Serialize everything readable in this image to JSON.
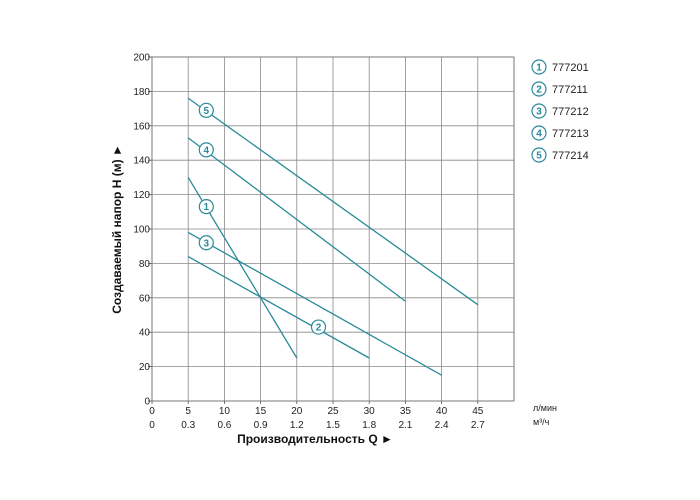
{
  "chart_data": {
    "type": "line",
    "title": "",
    "ylabel": "Создаваемый напор H (м) ►",
    "xlabel": "Производительность Q ►",
    "ylim": [
      0,
      200
    ],
    "yticks": [
      "0",
      "20",
      "40",
      "60",
      "80",
      "100",
      "120",
      "140",
      "160",
      "180",
      "200"
    ],
    "xlim": [
      0,
      50
    ],
    "x_ticks_lmin": [
      "0",
      "5",
      "10",
      "15",
      "20",
      "25",
      "30",
      "35",
      "40",
      "45"
    ],
    "x_ticks_m3h": [
      "0",
      "0.3",
      "0.6",
      "0.9",
      "1.2",
      "1.5",
      "1.8",
      "2.1",
      "2.4",
      "2.7"
    ],
    "x_unit_primary": "л/мин",
    "x_unit_secondary": "м³/ч",
    "grid": true,
    "legend_position": "right",
    "line_color": "#2a8a9a",
    "series": [
      {
        "marker": "1",
        "name": "777201",
        "points": [
          [
            5,
            130
          ],
          [
            20,
            25
          ]
        ],
        "label_at": [
          7.5,
          113
        ]
      },
      {
        "marker": "2",
        "name": "777211",
        "points": [
          [
            5,
            84
          ],
          [
            30,
            25
          ]
        ],
        "label_at": [
          23,
          43
        ]
      },
      {
        "marker": "3",
        "name": "777212",
        "points": [
          [
            5,
            98
          ],
          [
            40,
            15
          ]
        ],
        "label_at": [
          7.5,
          92
        ]
      },
      {
        "marker": "4",
        "name": "777213",
        "points": [
          [
            5,
            153
          ],
          [
            35,
            58
          ]
        ],
        "label_at": [
          7.5,
          146
        ]
      },
      {
        "marker": "5",
        "name": "777214",
        "points": [
          [
            5,
            176
          ],
          [
            45,
            56
          ]
        ],
        "label_at": [
          7.5,
          169
        ]
      }
    ]
  }
}
